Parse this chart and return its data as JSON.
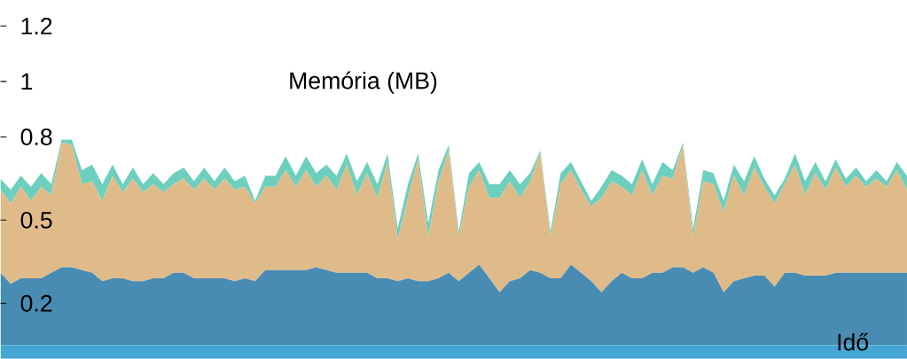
{
  "chart_data": {
    "type": "area",
    "stacked": true,
    "xlabel": "Idő",
    "ylabel": "Memória (MB)",
    "ylim": [
      0,
      1.2
    ],
    "yticks": [
      0.2,
      0.5,
      0.8,
      1,
      1.2
    ],
    "tick_labels": "y",
    "categories": [
      null,
      null,
      null,
      null,
      null,
      null,
      null,
      null,
      null,
      null,
      null,
      null,
      null,
      null,
      null,
      null,
      null,
      null,
      null,
      null,
      null,
      null,
      null,
      null,
      null,
      null,
      null,
      null,
      null,
      null,
      null,
      null,
      null,
      null,
      null,
      null,
      null,
      null,
      null,
      null,
      null,
      null,
      null,
      null,
      null,
      null,
      null,
      null,
      null,
      null,
      null,
      null,
      null,
      null,
      null,
      null,
      null,
      null,
      null,
      null,
      null,
      null,
      null,
      null,
      null,
      null,
      null,
      null,
      null,
      null,
      null,
      null,
      null,
      null,
      null,
      null,
      null,
      null,
      null,
      null,
      null,
      null,
      null,
      null,
      null,
      null,
      null,
      null,
      null,
      null
    ],
    "series": [
      {
        "color": "#45a5d3",
        "values": [
          0.05,
          0.05,
          0.05,
          0.05,
          0.05,
          0.05,
          0.05,
          0.05,
          0.05,
          0.05,
          0.05,
          0.05,
          0.05,
          0.05,
          0.05,
          0.05,
          0.05,
          0.05,
          0.05,
          0.05,
          0.05,
          0.05,
          0.05,
          0.05,
          0.05,
          0.05,
          0.05,
          0.05,
          0.05,
          0.05,
          0.05,
          0.05,
          0.05,
          0.05,
          0.05,
          0.05,
          0.05,
          0.05,
          0.05,
          0.05,
          0.05,
          0.05,
          0.05,
          0.05,
          0.05,
          0.05,
          0.05,
          0.05,
          0.05,
          0.05,
          0.05,
          0.05,
          0.05,
          0.05,
          0.05,
          0.05,
          0.05,
          0.05,
          0.05,
          0.05,
          0.05,
          0.05,
          0.05,
          0.05,
          0.05,
          0.05,
          0.05,
          0.05,
          0.05,
          0.05,
          0.05,
          0.05,
          0.05,
          0.05,
          0.05,
          0.05,
          0.05,
          0.05,
          0.05,
          0.05,
          0.05,
          0.05,
          0.05,
          0.05,
          0.05,
          0.05,
          0.05,
          0.05,
          0.05,
          0.05
        ]
      },
      {
        "color": "#488bb3",
        "values": [
          0.26,
          0.22,
          0.24,
          0.24,
          0.24,
          0.26,
          0.28,
          0.28,
          0.27,
          0.26,
          0.23,
          0.24,
          0.24,
          0.23,
          0.23,
          0.24,
          0.24,
          0.26,
          0.26,
          0.24,
          0.24,
          0.24,
          0.24,
          0.23,
          0.24,
          0.23,
          0.27,
          0.27,
          0.27,
          0.27,
          0.27,
          0.28,
          0.27,
          0.26,
          0.26,
          0.26,
          0.26,
          0.24,
          0.24,
          0.23,
          0.24,
          0.23,
          0.23,
          0.24,
          0.26,
          0.23,
          0.26,
          0.29,
          0.24,
          0.19,
          0.23,
          0.24,
          0.27,
          0.26,
          0.24,
          0.24,
          0.29,
          0.26,
          0.23,
          0.19,
          0.23,
          0.26,
          0.24,
          0.24,
          0.26,
          0.26,
          0.28,
          0.28,
          0.26,
          0.28,
          0.26,
          0.19,
          0.23,
          0.24,
          0.25,
          0.25,
          0.21,
          0.26,
          0.26,
          0.25,
          0.25,
          0.25,
          0.26,
          0.26,
          0.26,
          0.26,
          0.26,
          0.26,
          0.26,
          0.26
        ]
      },
      {
        "color": "#e0bb8a",
        "values": [
          0.3,
          0.29,
          0.33,
          0.28,
          0.33,
          0.28,
          0.45,
          0.44,
          0.31,
          0.33,
          0.29,
          0.37,
          0.31,
          0.37,
          0.32,
          0.34,
          0.31,
          0.32,
          0.34,
          0.32,
          0.36,
          0.32,
          0.36,
          0.33,
          0.33,
          0.28,
          0.3,
          0.3,
          0.36,
          0.3,
          0.36,
          0.29,
          0.34,
          0.3,
          0.39,
          0.28,
          0.36,
          0.29,
          0.42,
          0.15,
          0.29,
          0.44,
          0.16,
          0.35,
          0.44,
          0.16,
          0.31,
          0.34,
          0.29,
          0.34,
          0.36,
          0.29,
          0.32,
          0.43,
          0.15,
          0.34,
          0.34,
          0.3,
          0.27,
          0.34,
          0.36,
          0.31,
          0.3,
          0.39,
          0.28,
          0.35,
          0.32,
          0.44,
          0.13,
          0.31,
          0.32,
          0.29,
          0.38,
          0.3,
          0.39,
          0.32,
          0.3,
          0.32,
          0.39,
          0.29,
          0.37,
          0.31,
          0.38,
          0.31,
          0.35,
          0.31,
          0.34,
          0.31,
          0.37,
          0.3
        ]
      },
      {
        "color": "#6dcfbe",
        "values": [
          0.04,
          0.05,
          0.04,
          0.05,
          0.05,
          0.04,
          0.01,
          0.02,
          0.05,
          0.06,
          0.06,
          0.04,
          0.03,
          0.04,
          0.03,
          0.04,
          0.03,
          0.04,
          0.04,
          0.03,
          0.04,
          0.03,
          0.04,
          0.03,
          0.04,
          0.01,
          0.04,
          0.04,
          0.05,
          0.04,
          0.05,
          0.05,
          0.04,
          0.05,
          0.04,
          0.05,
          0.04,
          0.05,
          0.03,
          0.04,
          0.05,
          0.02,
          0.05,
          0.04,
          0.02,
          0.02,
          0.05,
          0.03,
          0.05,
          0.05,
          0.04,
          0.05,
          0.03,
          0.01,
          0.02,
          0.04,
          0.03,
          0.03,
          0.02,
          0.04,
          0.04,
          0.04,
          0.04,
          0.04,
          0.04,
          0.05,
          0.03,
          0.01,
          0.03,
          0.04,
          0.04,
          0.04,
          0.04,
          0.05,
          0.04,
          0.03,
          0.03,
          0.02,
          0.04,
          0.05,
          0.04,
          0.03,
          0.03,
          0.03,
          0.03,
          0.02,
          0.03,
          0.02,
          0.03,
          0.05
        ]
      }
    ]
  }
}
